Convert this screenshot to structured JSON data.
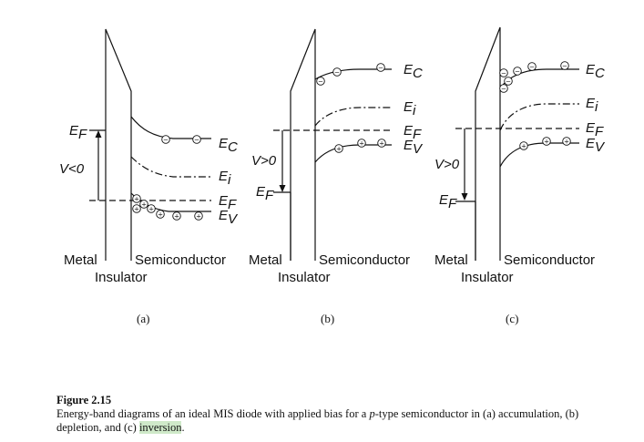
{
  "labels": {
    "metal": "Metal",
    "insulator": "Insulator",
    "semiconductor": "Semiconductor",
    "e_base": "E",
    "sub_c": "C",
    "sub_i": "i",
    "sub_f": "F",
    "sub_v": "V",
    "minus": "−",
    "plus": "+"
  },
  "panels": [
    {
      "letter": "(a)",
      "bias": "V<0"
    },
    {
      "letter": "(b)",
      "bias": "V>0"
    },
    {
      "letter": "(c)",
      "bias": "V>0"
    }
  ],
  "caption": {
    "figure": "Figure 2.15",
    "text_before_italic": "Energy-band diagrams of an ideal MIS diode with applied bias for a ",
    "italic": "p",
    "text_after_italic": "-type semiconductor in (a) accumulation, (b) depletion, and (c) ",
    "highlighted": "inversion",
    "end": "."
  }
}
